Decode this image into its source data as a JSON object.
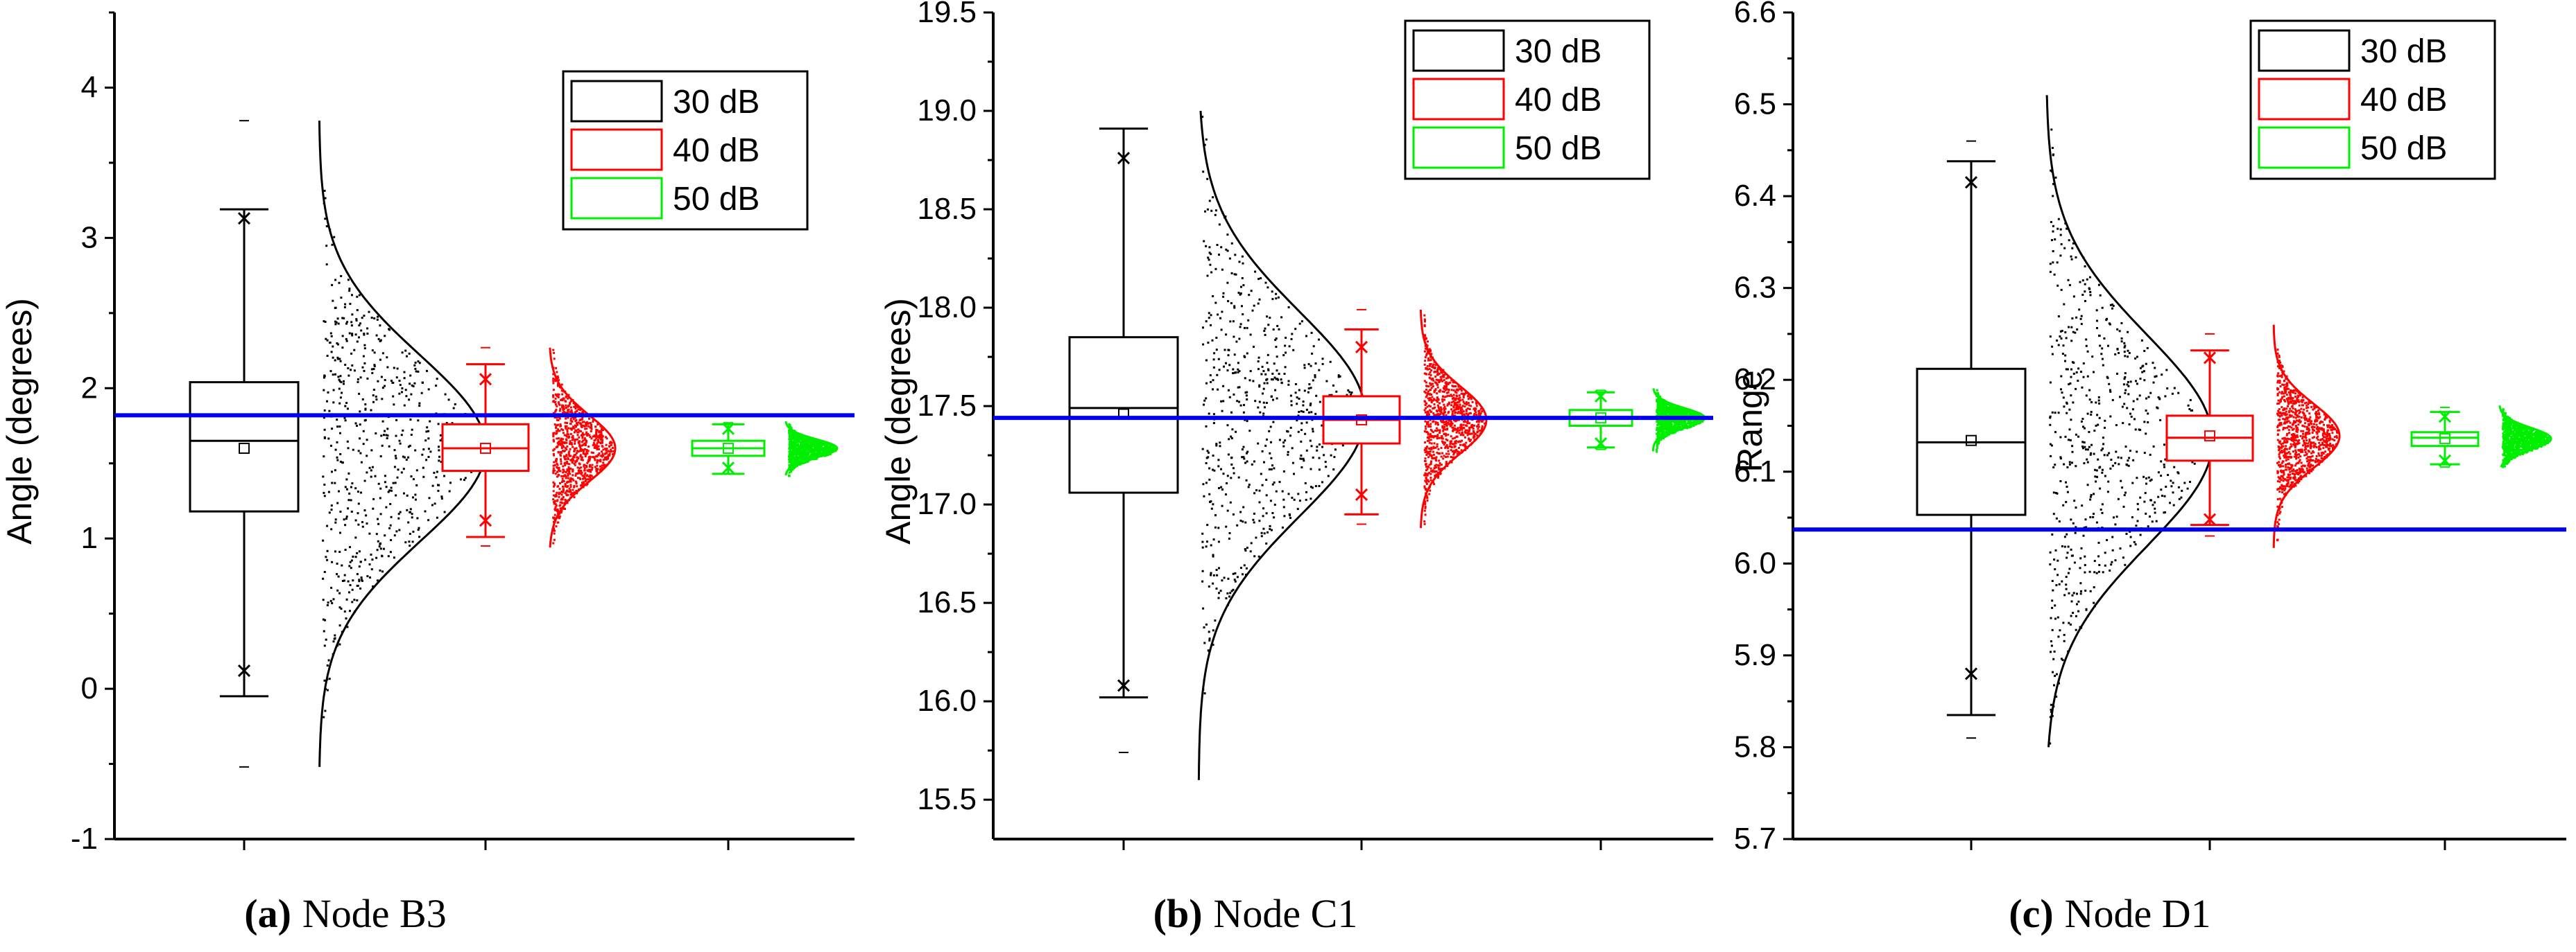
{
  "figure": {
    "reference_line_color": "#0000ee",
    "colors": {
      "30 dB": "#000000",
      "40 dB": "#ff0000",
      "50 dB": "#00ee00"
    }
  },
  "chart_data": [
    {
      "type": "box-violin",
      "panel_label": "(a)",
      "caption": "Node B3",
      "ylabel": "Angle (degrees)",
      "ylim": [
        -1,
        4.5
      ],
      "yticks": [
        -1,
        0,
        1,
        2,
        3,
        4
      ],
      "ytick_labels": [
        "-1",
        "0",
        "1",
        "2",
        "3",
        "4"
      ],
      "legend": [
        "30 dB",
        "40 dB",
        "50 dB"
      ],
      "legend_position": "top-right",
      "reference_value": 1.82,
      "series": [
        {
          "name": "30 dB",
          "whisker_low": -0.05,
          "q1": 1.18,
          "median": 1.65,
          "q3": 2.04,
          "whisker_high": 3.19,
          "mean": 1.6,
          "p1": 0.12,
          "p99": 3.13,
          "min": -0.52,
          "max": 3.78,
          "dist_min": -0.52,
          "dist_max": 3.78,
          "sd": 0.62
        },
        {
          "name": "40 dB",
          "whisker_low": 1.01,
          "q1": 1.45,
          "median": 1.6,
          "q3": 1.76,
          "whisker_high": 2.16,
          "mean": 1.6,
          "p1": 1.12,
          "p99": 2.06,
          "min": 0.95,
          "max": 2.27,
          "dist_min": 0.94,
          "dist_max": 2.27,
          "sd": 0.22
        },
        {
          "name": "50 dB",
          "whisker_low": 1.43,
          "q1": 1.55,
          "median": 1.6,
          "q3": 1.65,
          "whisker_high": 1.76,
          "mean": 1.6,
          "p1": 1.47,
          "p99": 1.73,
          "min": 1.43,
          "max": 1.77,
          "dist_min": 1.42,
          "dist_max": 1.78,
          "sd": 0.06
        }
      ]
    },
    {
      "type": "box-violin",
      "panel_label": "(b)",
      "caption": "Node C1",
      "ylabel": "Angle (degrees)",
      "ylim": [
        15.3,
        19.5
      ],
      "yticks": [
        15.5,
        16.0,
        16.5,
        17.0,
        17.5,
        18.0,
        18.5,
        19.0,
        19.5
      ],
      "ytick_labels": [
        "15.5",
        "16.0",
        "16.5",
        "17.0",
        "17.5",
        "18.0",
        "18.5",
        "19.0",
        "19.5"
      ],
      "legend": [
        "30 dB",
        "40 dB",
        "50 dB"
      ],
      "legend_position": "top-right",
      "reference_value": 17.44,
      "series": [
        {
          "name": "30 dB",
          "whisker_low": 16.02,
          "q1": 17.06,
          "median": 17.49,
          "q3": 17.85,
          "whisker_high": 18.91,
          "mean": 17.46,
          "p1": 16.08,
          "p99": 18.76,
          "min": 15.74,
          "max": 18.91,
          "dist_min": 15.6,
          "dist_max": 19.0,
          "sd": 0.52
        },
        {
          "name": "40 dB",
          "whisker_low": 16.95,
          "q1": 17.31,
          "median": 17.43,
          "q3": 17.55,
          "whisker_high": 17.89,
          "mean": 17.43,
          "p1": 17.05,
          "p99": 17.8,
          "min": 16.9,
          "max": 17.99,
          "dist_min": 16.88,
          "dist_max": 17.99,
          "sd": 0.17
        },
        {
          "name": "50 dB",
          "whisker_low": 17.29,
          "q1": 17.4,
          "median": 17.44,
          "q3": 17.48,
          "whisker_high": 17.57,
          "mean": 17.44,
          "p1": 17.31,
          "p99": 17.55,
          "min": 17.28,
          "max": 17.58,
          "dist_min": 17.27,
          "dist_max": 17.59,
          "sd": 0.05
        }
      ]
    },
    {
      "type": "box-violin",
      "panel_label": "(c)",
      "caption": "Node D1",
      "ylabel": "Range",
      "ylim": [
        5.7,
        6.6
      ],
      "yticks": [
        5.7,
        5.8,
        5.9,
        6.0,
        6.1,
        6.2,
        6.3,
        6.4,
        6.5,
        6.6
      ],
      "ytick_labels": [
        "5.7",
        "5.8",
        "5.9",
        "6.0",
        "6.1",
        "6.2",
        "6.3",
        "6.4",
        "6.5",
        "6.6"
      ],
      "legend": [
        "30 dB",
        "40 dB",
        "50 dB"
      ],
      "legend_position": "top-right",
      "reference_value": 6.037,
      "series": [
        {
          "name": "30 dB",
          "whisker_low": 5.835,
          "q1": 6.053,
          "median": 6.132,
          "q3": 6.212,
          "whisker_high": 6.438,
          "mean": 6.134,
          "p1": 5.88,
          "p99": 6.415,
          "min": 5.81,
          "max": 6.46,
          "dist_min": 5.8,
          "dist_max": 6.51,
          "sd": 0.115
        },
        {
          "name": "40 dB",
          "whisker_low": 6.042,
          "q1": 6.112,
          "median": 6.137,
          "q3": 6.161,
          "whisker_high": 6.232,
          "mean": 6.139,
          "p1": 6.048,
          "p99": 6.224,
          "min": 6.03,
          "max": 6.25,
          "dist_min": 6.017,
          "dist_max": 6.26,
          "sd": 0.035
        },
        {
          "name": "50 dB",
          "whisker_low": 6.108,
          "q1": 6.128,
          "median": 6.137,
          "q3": 6.143,
          "whisker_high": 6.165,
          "mean": 6.136,
          "p1": 6.112,
          "p99": 6.16,
          "min": 6.105,
          "max": 6.17,
          "dist_min": 6.105,
          "dist_max": 6.172,
          "sd": 0.012
        }
      ]
    }
  ]
}
